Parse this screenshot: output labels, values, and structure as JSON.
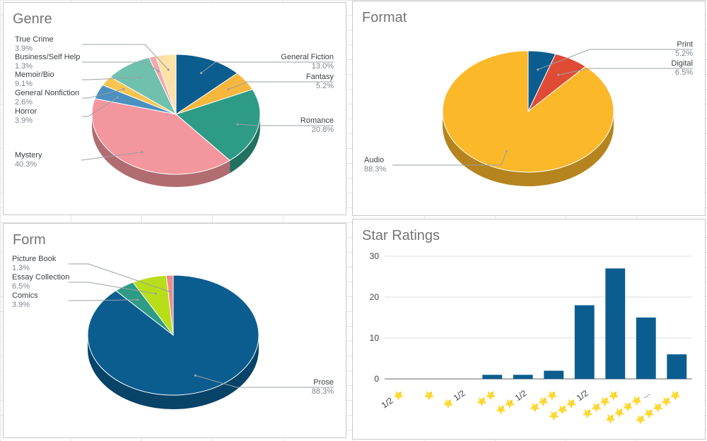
{
  "chart_data": [
    {
      "type": "pie",
      "title": "Genre",
      "slices": [
        {
          "label": "General Fiction",
          "value": 13.0,
          "pct": "13.0%",
          "color": "#0b5d90"
        },
        {
          "label": "Fantasy",
          "value": 5.2,
          "pct": "5.2%",
          "color": "#f6b73c"
        },
        {
          "label": "Romance",
          "value": 20.8,
          "pct": "20.8%",
          "color": "#2e9b86"
        },
        {
          "label": "Mystery",
          "value": 40.3,
          "pct": "40.3%",
          "color": "#f4969d"
        },
        {
          "label": "Horror",
          "value": 3.9,
          "pct": "3.9%",
          "color": "#4a90c0"
        },
        {
          "label": "General Nonfiction",
          "value": 2.6,
          "pct": "2.6%",
          "color": "#f9c44f"
        },
        {
          "label": "Memoir/Bio",
          "value": 9.1,
          "pct": "9.1%",
          "color": "#6fc1ae"
        },
        {
          "label": "Business/Self Help",
          "value": 1.3,
          "pct": "1.3%",
          "color": "#f4a7ad"
        },
        {
          "label": "True Crime",
          "value": 3.9,
          "pct": "3.9%",
          "color": "#fde1a6"
        }
      ]
    },
    {
      "type": "pie",
      "title": "Format",
      "slices": [
        {
          "label": "Print",
          "value": 5.2,
          "pct": "5.2%",
          "color": "#0b5d90"
        },
        {
          "label": "Digital",
          "value": 6.5,
          "pct": "6.5%",
          "color": "#e04b36"
        },
        {
          "label": "Audio",
          "value": 88.3,
          "pct": "88.3%",
          "color": "#fbb829"
        }
      ]
    },
    {
      "type": "pie",
      "title": "Form",
      "slices": [
        {
          "label": "Prose",
          "value": 88.3,
          "pct": "88.3%",
          "color": "#0b5d90"
        },
        {
          "label": "Comics",
          "value": 3.9,
          "pct": "3.9%",
          "color": "#2e9b86"
        },
        {
          "label": "Essay Collection",
          "value": 6.5,
          "pct": "6.5%",
          "color": "#b8de1a"
        },
        {
          "label": "Picture Book",
          "value": 1.3,
          "pct": "1.3%",
          "color": "#f08a8a"
        }
      ]
    },
    {
      "type": "bar",
      "title": "Star Ratings",
      "categories": [
        "1/2 ⭐",
        "⭐",
        "⭐ 1/2",
        "⭐⭐",
        "⭐⭐ 1/2",
        "⭐⭐⭐",
        "⭐⭐⭐ 1/2",
        "⭐⭐⭐⭐",
        "⭐⭐⭐⭐ ...",
        "⭐⭐⭐⭐⭐"
      ],
      "values": [
        0,
        0,
        0,
        1,
        1,
        2,
        18,
        27,
        15,
        6
      ],
      "ylim": [
        0,
        30
      ],
      "yticks": [
        0,
        10,
        20,
        30
      ],
      "grid": true,
      "color": "#0b5d90"
    }
  ]
}
